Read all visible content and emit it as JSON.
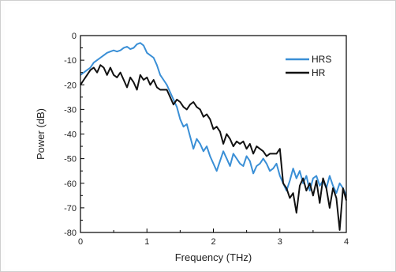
{
  "chart_data": {
    "type": "line",
    "title": "",
    "xlabel": "Frequency (THz)",
    "ylabel": "Power (dB)",
    "xlim": [
      0,
      4
    ],
    "ylim": [
      -80,
      0
    ],
    "xticks": [
      "0",
      "1",
      "2",
      "3",
      "4"
    ],
    "yticks": [
      "0",
      "-10",
      "-20",
      "-30",
      "-40",
      "-50",
      "-60",
      "-70",
      "-80"
    ],
    "legend_position": "top-right",
    "grid": false,
    "series": [
      {
        "name": "HRS",
        "color": "#3a8fd6",
        "x": [
          0,
          0.05,
          0.1,
          0.15,
          0.2,
          0.25,
          0.3,
          0.35,
          0.4,
          0.45,
          0.5,
          0.55,
          0.6,
          0.65,
          0.7,
          0.75,
          0.8,
          0.85,
          0.9,
          0.95,
          1.0,
          1.05,
          1.1,
          1.15,
          1.2,
          1.25,
          1.3,
          1.35,
          1.4,
          1.45,
          1.5,
          1.55,
          1.6,
          1.65,
          1.7,
          1.75,
          1.8,
          1.85,
          1.9,
          1.95,
          2.0,
          2.05,
          2.1,
          2.15,
          2.2,
          2.25,
          2.3,
          2.35,
          2.4,
          2.45,
          2.5,
          2.55,
          2.6,
          2.65,
          2.7,
          2.75,
          2.8,
          2.85,
          2.9,
          2.95,
          3.0,
          3.05,
          3.1,
          3.15,
          3.2,
          3.25,
          3.3,
          3.35,
          3.4,
          3.45,
          3.5,
          3.55,
          3.6,
          3.65,
          3.7,
          3.75,
          3.8,
          3.85,
          3.9,
          3.95,
          4.0
        ],
        "y": [
          -16,
          -15,
          -14,
          -13,
          -11,
          -10,
          -9,
          -8,
          -7,
          -6.5,
          -6,
          -6.5,
          -6,
          -5,
          -4.5,
          -5.5,
          -5,
          -3.5,
          -3,
          -4,
          -7,
          -8,
          -9,
          -12,
          -16,
          -18,
          -20,
          -23,
          -26,
          -29,
          -34,
          -37,
          -36,
          -41,
          -46,
          -42,
          -44,
          -47,
          -45,
          -49,
          -52,
          -55,
          -51,
          -47,
          -50,
          -53,
          -48,
          -50,
          -52,
          -53,
          -49,
          -51,
          -56,
          -53,
          -52,
          -50,
          -52,
          -55,
          -54,
          -52,
          -57,
          -60,
          -63,
          -59,
          -54,
          -58,
          -55,
          -60,
          -57,
          -63,
          -58,
          -57,
          -61,
          -59,
          -62,
          -57,
          -61,
          -64,
          -60,
          -62,
          -65
        ]
      },
      {
        "name": "HR",
        "color": "#111111",
        "x": [
          0,
          0.05,
          0.1,
          0.15,
          0.2,
          0.25,
          0.3,
          0.35,
          0.4,
          0.45,
          0.5,
          0.55,
          0.6,
          0.65,
          0.7,
          0.75,
          0.8,
          0.85,
          0.9,
          0.95,
          1.0,
          1.05,
          1.1,
          1.15,
          1.2,
          1.25,
          1.3,
          1.35,
          1.4,
          1.45,
          1.5,
          1.55,
          1.6,
          1.65,
          1.7,
          1.75,
          1.8,
          1.85,
          1.9,
          1.95,
          2.0,
          2.05,
          2.1,
          2.15,
          2.2,
          2.25,
          2.3,
          2.35,
          2.4,
          2.45,
          2.5,
          2.55,
          2.6,
          2.65,
          2.7,
          2.75,
          2.8,
          2.85,
          2.9,
          2.95,
          3.0,
          3.05,
          3.1,
          3.15,
          3.2,
          3.25,
          3.3,
          3.35,
          3.4,
          3.45,
          3.5,
          3.55,
          3.6,
          3.65,
          3.7,
          3.75,
          3.8,
          3.85,
          3.9,
          3.95,
          4.0
        ],
        "y": [
          -20,
          -18,
          -16,
          -14,
          -13,
          -15,
          -12,
          -13,
          -16,
          -13,
          -16,
          -17,
          -15,
          -18,
          -21,
          -17,
          -19,
          -22,
          -16,
          -18,
          -17,
          -20,
          -18,
          -21,
          -22,
          -22,
          -22,
          -25,
          -28,
          -26,
          -27,
          -29,
          -30,
          -28,
          -27,
          -29,
          -30,
          -33,
          -32,
          -34,
          -38,
          -37,
          -39,
          -44,
          -40,
          -42,
          -45,
          -43,
          -44,
          -43,
          -46,
          -44,
          -48,
          -45,
          -46,
          -47,
          -49,
          -48,
          -48,
          -48,
          -46,
          -60,
          -62,
          -66,
          -64,
          -72,
          -61,
          -58,
          -63,
          -60,
          -65,
          -59,
          -68,
          -58,
          -62,
          -70,
          -62,
          -66,
          -79,
          -62,
          -67
        ]
      }
    ]
  }
}
